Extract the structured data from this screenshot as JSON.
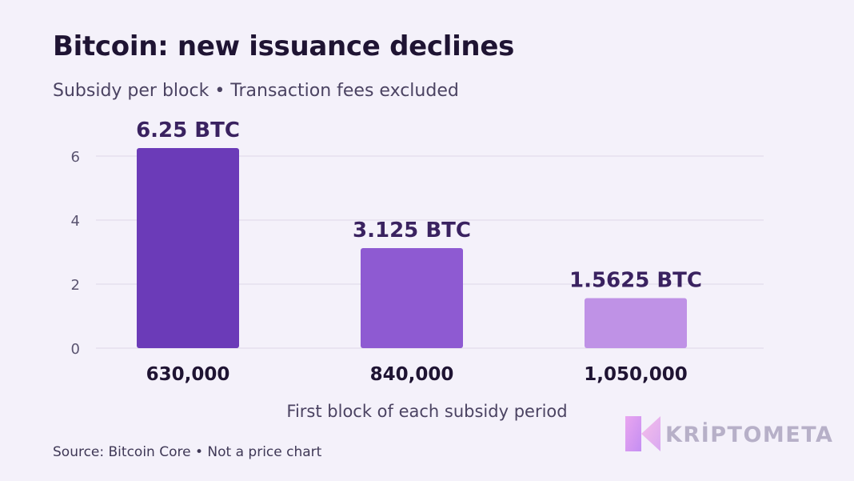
{
  "header": {
    "title": "Bitcoin: new issuance declines",
    "subtitle": "Subsidy per block • Transaction fees excluded"
  },
  "footer": {
    "source": "Source: Bitcoin Core • Not a price chart"
  },
  "logo": {
    "text": "KRİPTOMETA"
  },
  "chart_data": {
    "type": "bar",
    "categories": [
      "630,000",
      "840,000",
      "1,050,000"
    ],
    "values": [
      6.25,
      3.125,
      1.5625
    ],
    "value_labels": [
      "6.25 BTC",
      "3.125 BTC",
      "1.5625 BTC"
    ],
    "xlabel": "First block of each subsidy period",
    "ylabel": "",
    "ylim": [
      0,
      6.6
    ],
    "yticks": [
      0,
      2,
      4,
      6
    ],
    "grid": true,
    "bar_colors": [
      "#6b3bb8",
      "#8e5ad2",
      "#bf92e6"
    ]
  }
}
